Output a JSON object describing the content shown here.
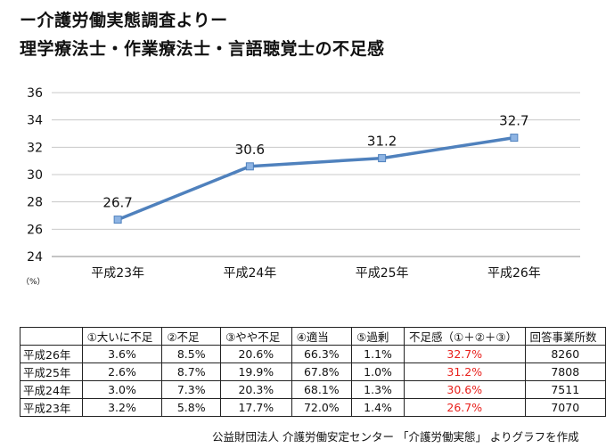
{
  "title_line1": "ー介護労働実態調査よりー",
  "title_line2": "理学療法士・作業療法士・言語聴覚士の不足感",
  "chart_data": {
    "type": "line",
    "categories": [
      "平成23年",
      "平成24年",
      "平成25年",
      "平成26年"
    ],
    "values": [
      26.7,
      30.6,
      31.2,
      32.7
    ],
    "data_labels": [
      "26.7",
      "30.6",
      "31.2",
      "32.7"
    ],
    "title": "",
    "xlabel": "",
    "ylabel": "",
    "unit_label": "（%）",
    "ylim": [
      24,
      36
    ],
    "yticks": [
      24,
      26,
      28,
      30,
      32,
      34,
      36
    ],
    "grid": true,
    "line_color": "#4f81bd",
    "marker_color": "#8eb4e3"
  },
  "table": {
    "headers": [
      "",
      "①大いに不足",
      "②不足",
      "③やや不足",
      "④適当",
      "⑤過剰",
      "不足感（①＋②＋③）",
      "回答事業所数"
    ],
    "rows": [
      [
        "平成26年",
        "3.6%",
        "8.5%",
        "20.6%",
        "66.3%",
        "1.1%",
        "32.7%",
        "8260"
      ],
      [
        "平成25年",
        "2.6%",
        "8.7%",
        "19.9%",
        "67.8%",
        "1.0%",
        "31.2%",
        "7808"
      ],
      [
        "平成24年",
        "3.0%",
        "7.3%",
        "20.3%",
        "68.1%",
        "1.3%",
        "30.6%",
        "7511"
      ],
      [
        "平成23年",
        "3.2%",
        "5.8%",
        "17.7%",
        "72.0%",
        "1.4%",
        "26.7%",
        "7070"
      ]
    ],
    "highlight_color": "#e8201c"
  },
  "source": "公益財団法人 介護労働安定センター 「介護労働実態」 よりグラフを作成"
}
